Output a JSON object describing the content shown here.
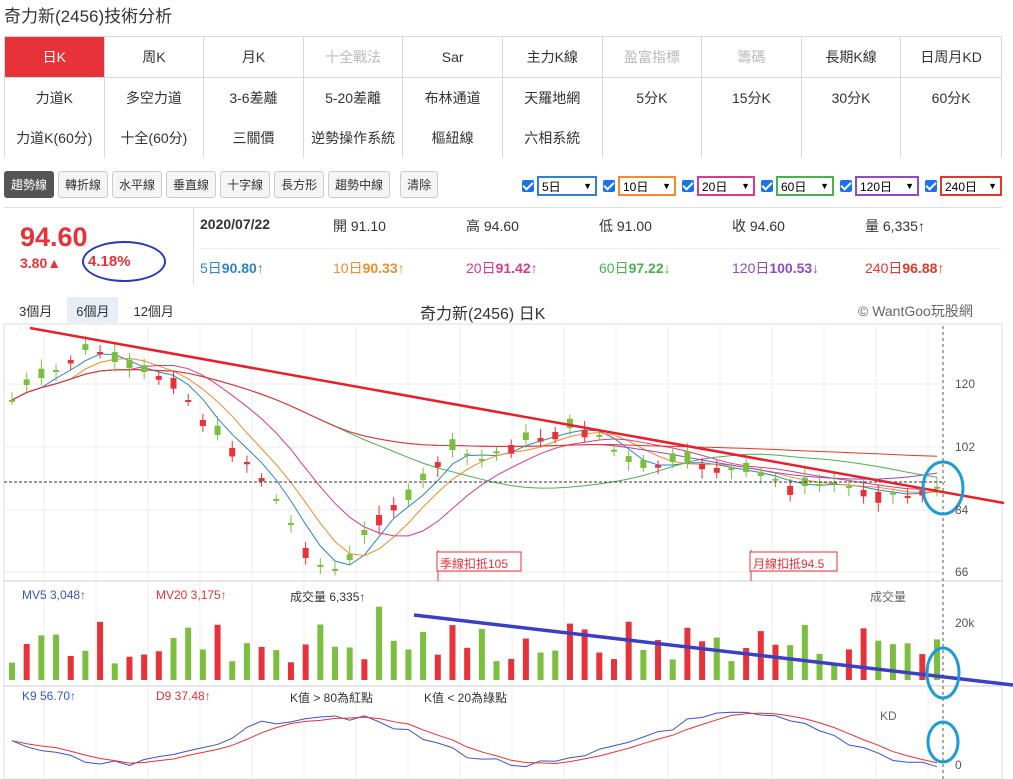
{
  "page_title": "奇力新(2456)技術分析",
  "nav": {
    "row1": [
      {
        "label": "日K",
        "state": "active"
      },
      {
        "label": "周K",
        "state": ""
      },
      {
        "label": "月K",
        "state": ""
      },
      {
        "label": "十全戰法",
        "state": "disabled"
      },
      {
        "label": "Sar",
        "state": ""
      },
      {
        "label": "主力K線",
        "state": ""
      },
      {
        "label": "盈富指標",
        "state": "disabled"
      },
      {
        "label": "籌碼",
        "state": "disabled"
      },
      {
        "label": "長期K線",
        "state": ""
      },
      {
        "label": "日周月KD",
        "state": ""
      }
    ],
    "row2": [
      "力道K",
      "多空力道",
      "3-6差離",
      "5-20差離",
      "布林通道",
      "天羅地網",
      "5分K",
      "15分K",
      "30分K",
      "60分K"
    ],
    "row3": [
      "力道K(60分)",
      "十全(60分)",
      "三關價",
      "逆勢操作系統",
      "樞紐線",
      "六相系統"
    ]
  },
  "toolbar": [
    "趨勢線",
    "轉折線",
    "水平線",
    "垂直線",
    "十字線",
    "長方形",
    "趨勢中線"
  ],
  "toolbar_clear": "清除",
  "ma_selects": [
    {
      "label": "5日",
      "color": "#2f83c9"
    },
    {
      "label": "10日",
      "color": "#f08c2e"
    },
    {
      "label": "20日",
      "color": "#d63c8d"
    },
    {
      "label": "60日",
      "color": "#4caf50"
    },
    {
      "label": "120日",
      "color": "#8e4bc6"
    },
    {
      "label": "240日",
      "color": "#e0392b"
    }
  ],
  "quote": {
    "price": "94.60",
    "change": "3.80▲",
    "change_pct": "4.18%",
    "date": "2020/07/22",
    "open": "開 91.10",
    "high": "高 94.60",
    "low": "低 91.00",
    "close": "收 94.60",
    "volume": "量 6,335↑"
  },
  "ma_values": [
    {
      "label": "5日",
      "value": "90.80↑",
      "color": "#2f83c9"
    },
    {
      "label": "10日",
      "value": "90.33↑",
      "color": "#f08c2e"
    },
    {
      "label": "20日",
      "value": "91.42↑",
      "color": "#d63c8d"
    },
    {
      "label": "60日",
      "value": "97.22↓",
      "color": "#4caf50"
    },
    {
      "label": "120日",
      "value": "100.53↓",
      "color": "#8e4bc6"
    },
    {
      "label": "240日",
      "value": "96.88↑",
      "color": "#e0392b"
    }
  ],
  "range_tabs": [
    {
      "label": "3個月",
      "state": ""
    },
    {
      "label": "6個月",
      "state": "active"
    },
    {
      "label": "12個月",
      "state": ""
    }
  ],
  "chart_title": "奇力新(2456) 日K",
  "copyright": "© WantGoo玩股網",
  "price_axis": [
    "120",
    "102",
    "84",
    "66"
  ],
  "annotations": {
    "quarter": "季線扣抵105",
    "month": "月線扣抵94.5"
  },
  "volume_legend": {
    "mv5": "MV5 3,048↑",
    "mv20": "MV20 3,175↑",
    "vol": "成交量 6,335↑",
    "title": "成交量",
    "axis": [
      "20k",
      "0"
    ]
  },
  "kd_legend": {
    "k": "K9 56.70↑",
    "d": "D9 37.48↑",
    "hint1": "K值 > 80為紅點",
    "hint2": "K值 < 20為綠點",
    "title": "KD",
    "axis": [
      "0"
    ]
  },
  "colors": {
    "up": "#e8323a",
    "down": "#7cbf3f",
    "trend_price": "#e8202a",
    "trend_volume": "#3a3fc4",
    "ring": "#1e9bd7"
  }
}
